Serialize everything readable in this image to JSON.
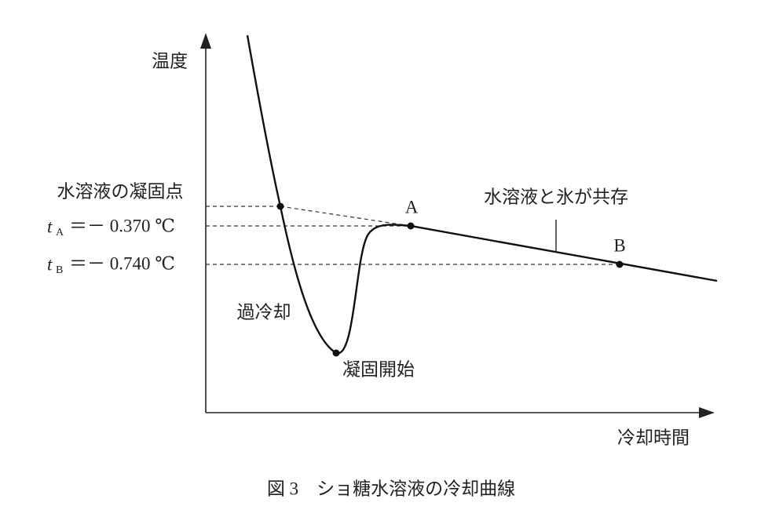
{
  "axes": {
    "y_label": "温度",
    "x_label": "冷却時間"
  },
  "levels": [
    {
      "label": "水溶液の凝固点"
    },
    {
      "symbol": "t",
      "subscript": "A",
      "text": "＝－ 0.370 ℃"
    },
    {
      "symbol": "t",
      "subscript": "B",
      "text": "＝－ 0.740 ℃"
    }
  ],
  "points": [
    {
      "label": "A"
    },
    {
      "label": "B"
    }
  ],
  "annotations": [
    {
      "label": "水溶液と氷が共存"
    },
    {
      "label": "過冷却"
    },
    {
      "label": "凝固開始"
    }
  ],
  "caption": "図 3　ショ糖水溶液の冷却曲線"
}
